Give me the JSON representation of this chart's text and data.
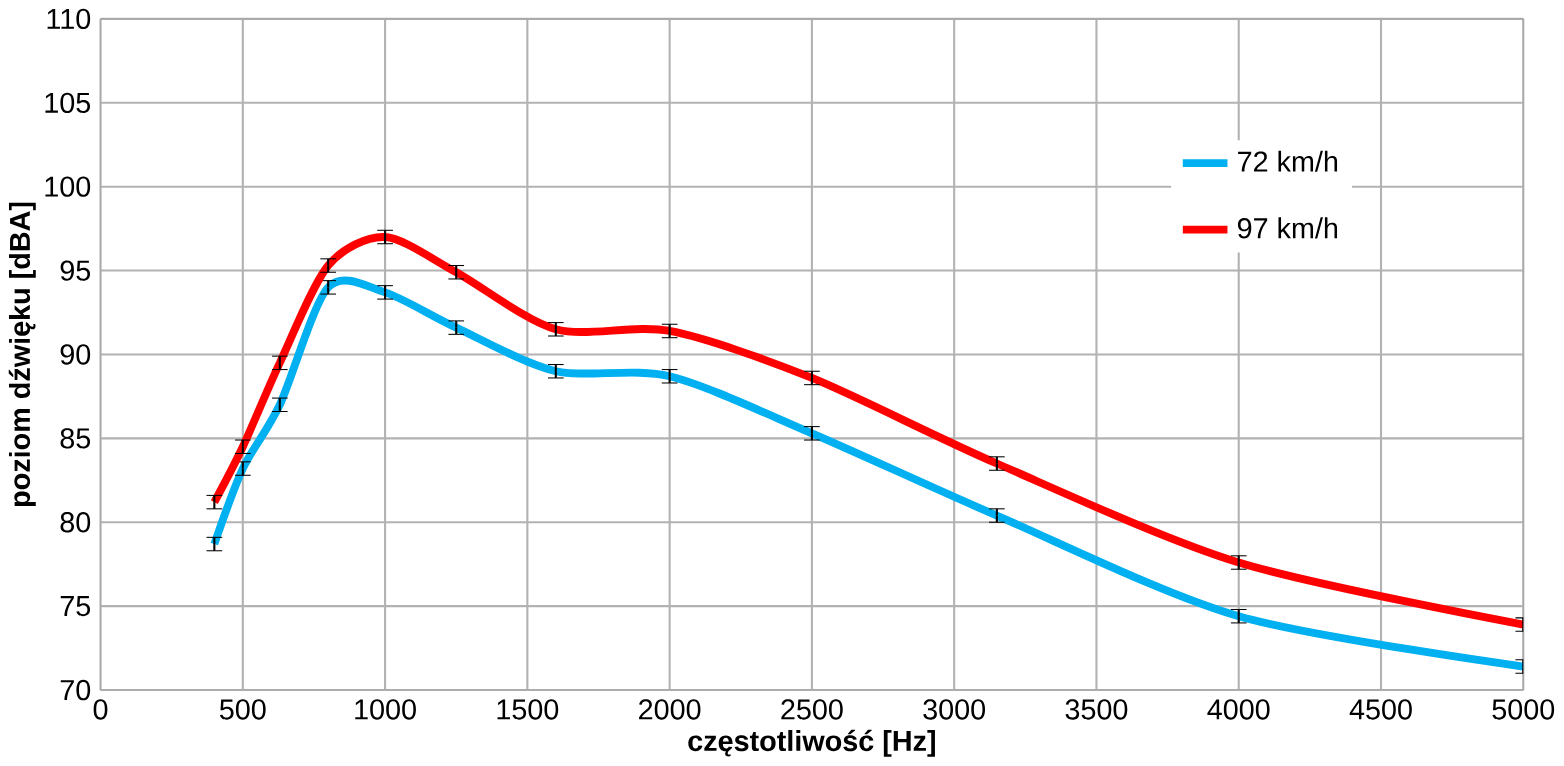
{
  "chart_data": {
    "type": "line",
    "xlabel": "częstotliwość [Hz]",
    "ylabel": "poziom dźwięku [dBA]",
    "x": [
      400,
      500,
      630,
      800,
      1000,
      1250,
      1600,
      2000,
      2500,
      3150,
      4000,
      5000
    ],
    "series": [
      {
        "name": "72 km/h",
        "color": "#00b0f0",
        "values": [
          78.7,
          83.2,
          87.0,
          94.0,
          93.7,
          91.6,
          89.0,
          88.7,
          85.3,
          80.4,
          74.4,
          71.4
        ],
        "errors": [
          0.4,
          0.4,
          0.4,
          0.4,
          0.4,
          0.4,
          0.4,
          0.4,
          0.4,
          0.4,
          0.4,
          0.4
        ]
      },
      {
        "name": "97 km/h",
        "color": "#ff0000",
        "values": [
          81.2,
          84.5,
          89.5,
          95.3,
          97.0,
          94.9,
          91.5,
          91.4,
          88.6,
          83.5,
          77.6,
          73.9
        ],
        "errors": [
          0.4,
          0.4,
          0.4,
          0.4,
          0.4,
          0.4,
          0.4,
          0.4,
          0.4,
          0.4,
          0.4,
          0.4
        ]
      }
    ],
    "xlim": [
      0,
      5000
    ],
    "xticks": [
      0,
      500,
      1000,
      1500,
      2000,
      2500,
      3000,
      3500,
      4000,
      4500,
      5000
    ],
    "ylim": [
      70,
      110
    ],
    "yticks": [
      70,
      75,
      80,
      85,
      90,
      95,
      100,
      105,
      110
    ],
    "grid": true,
    "legend": "top right",
    "marker": "none",
    "line_style": "solid"
  }
}
